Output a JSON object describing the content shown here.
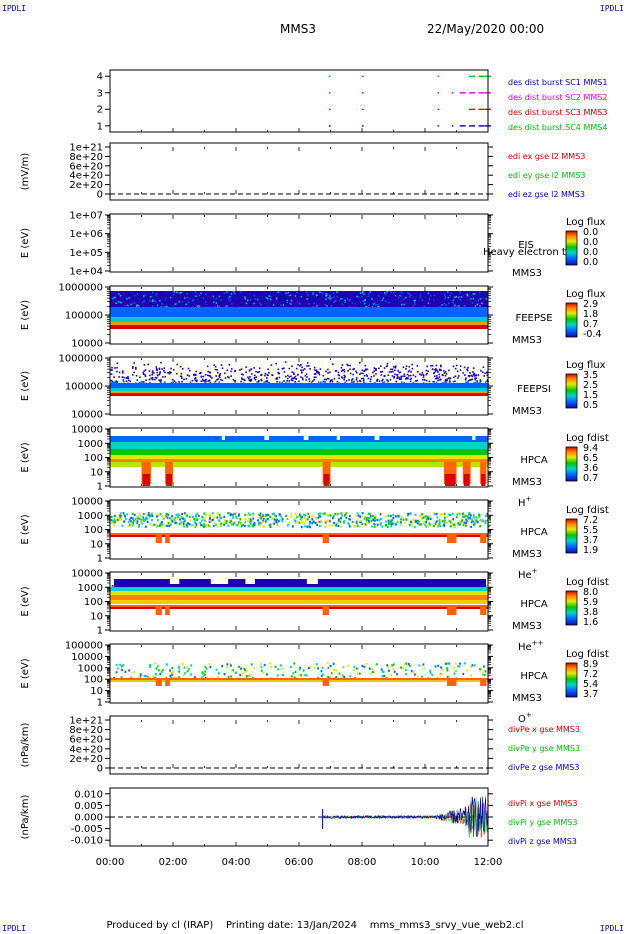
{
  "header": {
    "corner_text": "IPDLI",
    "spacecraft": "MMS3",
    "date": "22/May/2020 00:00"
  },
  "footer": {
    "produced_by": "Produced by cl (IRAP)",
    "printing_date": "Printing date: 13/Jan/2024",
    "script_name": "mms_mms3_srvy_vue_web2.cl"
  },
  "x_axis": {
    "range_hours": [
      0,
      12
    ],
    "tick_labels": [
      "00:00",
      "02:00",
      "04:00",
      "06:00",
      "08:00",
      "10:00",
      "12:00"
    ]
  },
  "colors": {
    "red": "#d40000",
    "green": "#00c000",
    "blue": "#0000c0",
    "magenta": "#e000e0",
    "label_blue": "#0000c0"
  },
  "chart_data": [
    {
      "type": "scatter",
      "panel": "burst",
      "yticks": [
        "4",
        "3",
        "2",
        "1"
      ],
      "legend": [
        {
          "name": "des dist burst SC1 MMS1",
          "color": "#0000c0"
        },
        {
          "name": "des dist burst SC2 MMS2",
          "color": "#e000e0"
        },
        {
          "name": "des dist burst SC3 MMS3",
          "color": "#d40000"
        },
        {
          "name": "des dist burst SC4 MMS4",
          "color": "#00c000"
        }
      ],
      "burst_hours": [
        6.95,
        8.0,
        10.4,
        10.85,
        11.1,
        11.4,
        11.7,
        11.9
      ]
    },
    {
      "type": "line",
      "panel": "edi",
      "ylabel": "(mV/m)",
      "yticks": [
        "1e+21",
        "8e+20",
        "6e+20",
        "4e+20",
        "2e+20",
        "0"
      ],
      "legend": [
        {
          "name": "edi ex gse l2 MMS3",
          "color": "#d40000"
        },
        {
          "name": "edi ey gse l2 MMS3",
          "color": "#00c000"
        },
        {
          "name": "edi ez gse l2 MMS3",
          "color": "#0000c0"
        }
      ]
    },
    {
      "type": "heatmap",
      "panel": "eis",
      "ylabel": "E (eV)",
      "yticks": [
        "1e+07",
        "1e+06",
        "1e+05",
        "1e+04"
      ],
      "instrument": "EIS",
      "spacecraft": "MMS3",
      "extra_label": "Heavy electron to",
      "colorbar_title": "Log flux",
      "colorbar_ticks": [
        "0.0",
        "0.0",
        "0.0",
        "0.0"
      ]
    },
    {
      "type": "heatmap",
      "panel": "feepse",
      "ylabel": "E (eV)",
      "yticks": [
        "1000000",
        "100000",
        "10000"
      ],
      "instrument": "FEEPSE",
      "spacecraft": "MMS3",
      "colorbar_title": "Log flux",
      "colorbar_ticks": [
        "2.9",
        "1.8",
        "0.7",
        "-0.4"
      ]
    },
    {
      "type": "heatmap",
      "panel": "feepsi",
      "ylabel": "E (eV)",
      "yticks": [
        "1000000",
        "100000",
        "10000"
      ],
      "instrument": "FEEPSI",
      "spacecraft": "MMS3",
      "colorbar_title": "Log flux",
      "colorbar_ticks": [
        "3.5",
        "2.5",
        "1.5",
        "0.5"
      ]
    },
    {
      "type": "heatmap",
      "panel": "hpca_h",
      "ylabel": "E (eV)",
      "yticks": [
        "10000",
        "1000",
        "100",
        "10",
        "1"
      ],
      "instrument": "HPCA",
      "spacecraft": "MMS3",
      "species": "H",
      "species_charge": "+",
      "colorbar_title": "Log fdist",
      "colorbar_ticks": [
        "9.4",
        "6.5",
        "3.6",
        "0.7"
      ]
    },
    {
      "type": "heatmap",
      "panel": "hpca_he",
      "ylabel": "E (eV)",
      "yticks": [
        "10000",
        "1000",
        "100",
        "10",
        "1"
      ],
      "instrument": "HPCA",
      "spacecraft": "MMS3",
      "species": "He",
      "species_charge": "+",
      "colorbar_title": "Log fdist",
      "colorbar_ticks": [
        "7.2",
        "5.5",
        "3.7",
        "1.9"
      ]
    },
    {
      "type": "heatmap",
      "panel": "hpca_he2",
      "ylabel": "E (eV)",
      "yticks": [
        "10000",
        "1000",
        "100",
        "10",
        "1"
      ],
      "instrument": "HPCA",
      "spacecraft": "MMS3",
      "species": "He",
      "species_charge": "++",
      "colorbar_title": "Log fdist",
      "colorbar_ticks": [
        "8.0",
        "5.9",
        "3.8",
        "1.6"
      ]
    },
    {
      "type": "heatmap",
      "panel": "hpca_o",
      "ylabel": "E (eV)",
      "yticks": [
        "100000",
        "10000",
        "1000",
        "100",
        "10",
        "1"
      ],
      "instrument": "HPCA",
      "spacecraft": "MMS3",
      "species": "O",
      "species_charge": "+",
      "colorbar_title": "Log fdist",
      "colorbar_ticks": [
        "8.9",
        "7.2",
        "5.4",
        "3.7"
      ]
    },
    {
      "type": "line",
      "panel": "divpe",
      "ylabel": "(nPa/km)",
      "yticks": [
        "1e+21",
        "8e+20",
        "6e+20",
        "4e+20",
        "2e+20",
        "0"
      ],
      "legend": [
        {
          "name": "divPe x gse MMS3",
          "color": "#d40000"
        },
        {
          "name": "divPe y gse MMS3",
          "color": "#00c000"
        },
        {
          "name": "divPe z gse MMS3",
          "color": "#0000c0"
        }
      ]
    },
    {
      "type": "line",
      "panel": "divpi",
      "ylabel": "(nPa/km)",
      "yticks": [
        "0.010",
        "0.005",
        "0.000",
        "-0.005",
        "-0.010"
      ],
      "ylim": [
        -0.0125,
        0.0125
      ],
      "legend": [
        {
          "name": "divPi x gse MMS3",
          "color": "#d40000"
        },
        {
          "name": "divPi y gse MMS3",
          "color": "#00c000"
        },
        {
          "name": "divPi z gse MMS3",
          "color": "#0000c0"
        }
      ],
      "signal_start_hour": 6.75
    }
  ]
}
